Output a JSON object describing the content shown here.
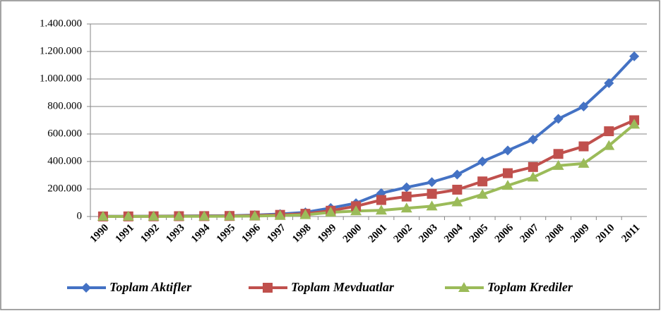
{
  "chart_data": {
    "type": "line",
    "categories": [
      "1990",
      "1991",
      "1992",
      "1993",
      "1994",
      "1995",
      "1996",
      "1997",
      "1998",
      "1999",
      "2000",
      "2001",
      "2002",
      "2003",
      "2004",
      "2005",
      "2006",
      "2007",
      "2008",
      "2009",
      "2010",
      "2011"
    ],
    "series": [
      {
        "name": "Toplam Aktifler",
        "color": "#4472c4",
        "marker": "diamond",
        "values": [
          1000,
          1500,
          2500,
          4000,
          5000,
          6000,
          10000,
          18000,
          30000,
          62000,
          97000,
          170000,
          212000,
          250000,
          305000,
          400000,
          480000,
          560000,
          710000,
          800000,
          970000,
          1165000
        ]
      },
      {
        "name": "Toplam Mevduatlar",
        "color": "#c0504d",
        "marker": "square",
        "values": [
          500,
          800,
          1500,
          2500,
          3000,
          4000,
          7000,
          12000,
          20000,
          42000,
          75000,
          120000,
          145000,
          165000,
          195000,
          255000,
          315000,
          360000,
          455000,
          510000,
          620000,
          700000
        ]
      },
      {
        "name": "Toplam Krediler",
        "color": "#9bbb59",
        "marker": "triangle",
        "values": [
          300,
          500,
          800,
          1200,
          1500,
          2000,
          3500,
          7000,
          12000,
          30000,
          40000,
          45000,
          60000,
          75000,
          105000,
          160000,
          225000,
          285000,
          370000,
          385000,
          515000,
          670000
        ]
      }
    ],
    "ylim": [
      0,
      1400000
    ],
    "yticks": [
      0,
      {
        "value": 200000,
        "label": "200.000"
      },
      {
        "value": 400000,
        "label": "400.000"
      },
      {
        "value": 600000,
        "label": "600.000"
      },
      {
        "value": 800000,
        "label": "800.000"
      },
      {
        "value": 1000000,
        "label": "1.000.000"
      },
      {
        "value": 1200000,
        "label": "1.200.000"
      },
      {
        "value": 1400000,
        "label": "1.400.000"
      }
    ],
    "grid": true,
    "legend": "bottom"
  }
}
